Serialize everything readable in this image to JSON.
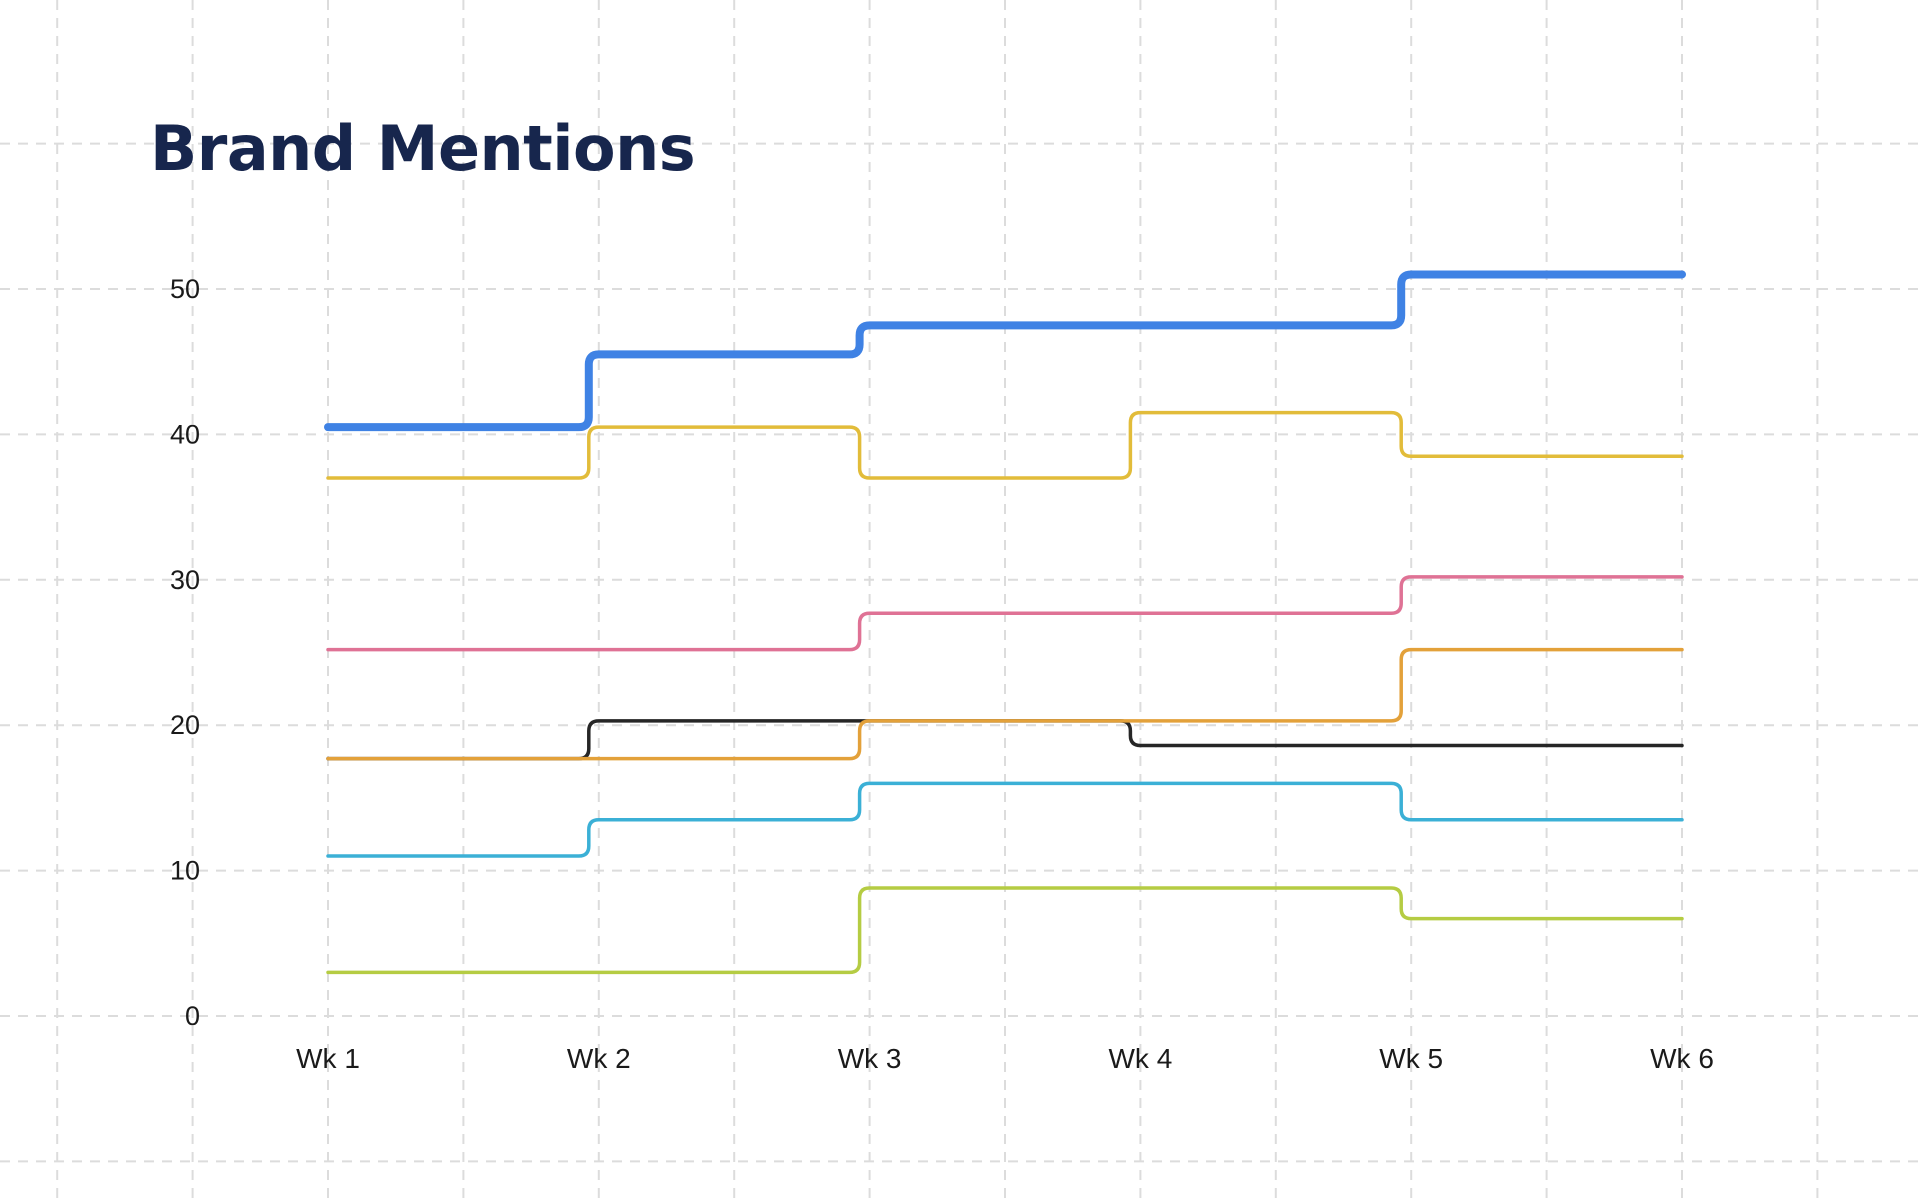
{
  "chart_data": {
    "type": "line",
    "step": true,
    "title": "Brand Mentions",
    "categories": [
      "Wk 1",
      "Wk 2",
      "Wk 3",
      "Wk 4",
      "Wk 5",
      "Wk 6"
    ],
    "yticks": [
      0,
      10,
      20,
      30,
      40,
      50
    ],
    "ylim": [
      0,
      50
    ],
    "grid": true,
    "legend": "none",
    "series": [
      {
        "color": "#3f82e4",
        "values": [
          40.5,
          45.5,
          47.5,
          47.5,
          51,
          51
        ]
      },
      {
        "color": "#e2bc3a",
        "values": [
          37,
          40.5,
          37,
          41.5,
          38.5,
          38.5
        ]
      },
      {
        "color": "#df7295",
        "values": [
          25.2,
          25.2,
          27.7,
          27.7,
          30.2,
          30.2
        ]
      },
      {
        "color": "#e3a13a",
        "values": [
          17.7,
          17.7,
          20.3,
          20.3,
          25.2,
          25.2
        ]
      },
      {
        "color": "#262626",
        "values": [
          17.7,
          20.3,
          20.3,
          18.6,
          18.6,
          18.6
        ]
      },
      {
        "color": "#3bb0d6",
        "values": [
          11,
          13.5,
          16,
          16,
          13.5,
          13.5
        ]
      },
      {
        "color": "#b5cc43",
        "values": [
          3,
          3,
          8.8,
          8.8,
          6.7,
          6.7
        ]
      }
    ]
  }
}
